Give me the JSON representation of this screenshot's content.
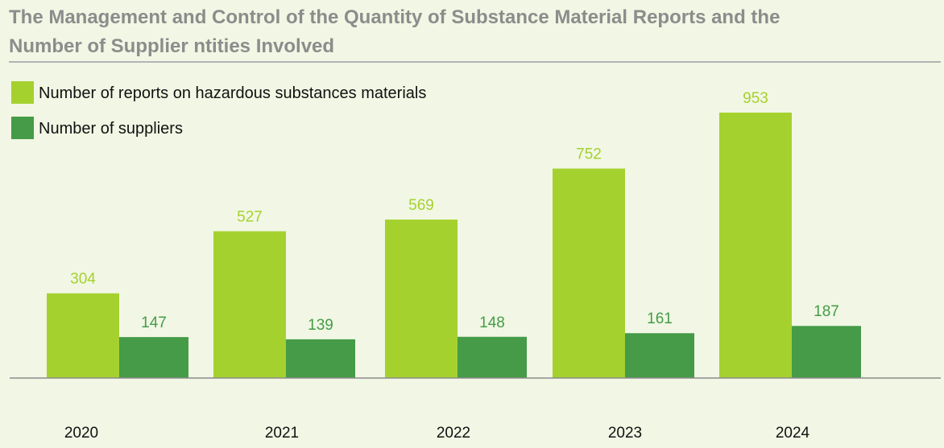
{
  "title_line1": "The Management and Control of the Quantity of Substance Material Reports and the",
  "title_line2": "Number of Supplier ntities Involved",
  "chart_data": {
    "type": "bar",
    "categories": [
      "2020",
      "2021",
      "2022",
      "2023",
      "2024"
    ],
    "series": [
      {
        "name": "Number of reports on hazardous substances materials",
        "values": [
          304,
          527,
          569,
          752,
          953
        ],
        "color": "#a5d12e",
        "label_color": "#a5d12e"
      },
      {
        "name": "Number of suppliers",
        "values": [
          147,
          139,
          148,
          161,
          187
        ],
        "color": "#459b47",
        "label_color": "#459b47"
      }
    ],
    "legend_position": "top-left",
    "grid": false,
    "ylim": [
      0,
      953
    ]
  }
}
